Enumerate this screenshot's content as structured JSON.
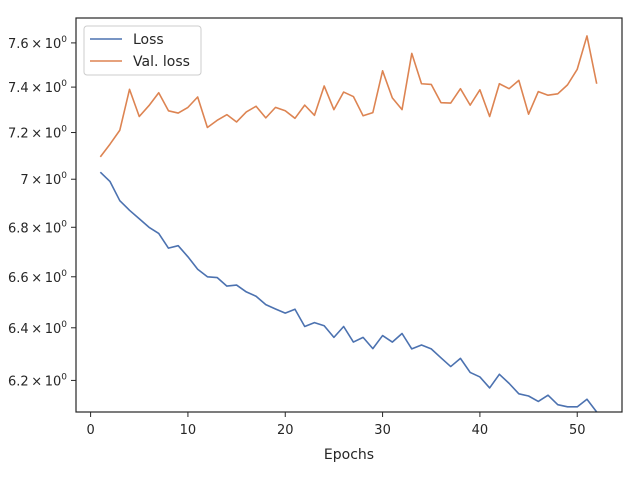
{
  "chart_data": {
    "type": "line",
    "title": "",
    "xlabel": "Epochs",
    "ylabel": "",
    "xlim": [
      -1.5,
      54.6
    ],
    "ylim": [
      6.083,
      7.715
    ],
    "yscale": "log",
    "grid": false,
    "legend_position": "upper-left",
    "x_ticks": [
      0,
      10,
      20,
      30,
      40,
      50
    ],
    "y_ticks": [
      6.2,
      6.4,
      6.6,
      6.8,
      7.0,
      7.2,
      7.4,
      7.6
    ],
    "x": [
      1,
      2,
      3,
      4,
      5,
      6,
      7,
      8,
      9,
      10,
      11,
      12,
      13,
      14,
      15,
      16,
      17,
      18,
      19,
      20,
      21,
      22,
      23,
      24,
      25,
      26,
      27,
      28,
      29,
      30,
      31,
      32,
      33,
      34,
      35,
      36,
      37,
      38,
      39,
      40,
      41,
      42,
      43,
      44,
      45,
      46,
      47,
      48,
      49,
      50,
      51,
      52
    ],
    "series": [
      {
        "name": "Loss",
        "color": "#4c72b0",
        "values": [
          7.03,
          6.99,
          6.91,
          6.87,
          6.835,
          6.8,
          6.775,
          6.715,
          6.725,
          6.68,
          6.63,
          6.6,
          6.597,
          6.563,
          6.567,
          6.54,
          6.523,
          6.49,
          6.473,
          6.457,
          6.472,
          6.405,
          6.42,
          6.408,
          6.363,
          6.405,
          6.345,
          6.363,
          6.32,
          6.37,
          6.345,
          6.378,
          6.319,
          6.334,
          6.319,
          6.285,
          6.252,
          6.283,
          6.23,
          6.213,
          6.172,
          6.223,
          6.189,
          6.15,
          6.142,
          6.122,
          6.145,
          6.11,
          6.102,
          6.102,
          6.13,
          6.083
        ]
      },
      {
        "name": "Val. loss",
        "color": "#dd8452",
        "values": [
          7.095,
          7.15,
          7.21,
          7.39,
          7.27,
          7.318,
          7.375,
          7.295,
          7.285,
          7.31,
          7.356,
          7.222,
          7.253,
          7.278,
          7.246,
          7.29,
          7.315,
          7.264,
          7.31,
          7.295,
          7.262,
          7.32,
          7.275,
          7.405,
          7.3,
          7.378,
          7.358,
          7.273,
          7.287,
          7.473,
          7.352,
          7.3,
          7.552,
          7.415,
          7.412,
          7.331,
          7.329,
          7.393,
          7.32,
          7.388,
          7.27,
          7.415,
          7.393,
          7.43,
          7.28,
          7.38,
          7.364,
          7.37,
          7.41,
          7.48,
          7.632,
          7.415
        ]
      }
    ]
  }
}
